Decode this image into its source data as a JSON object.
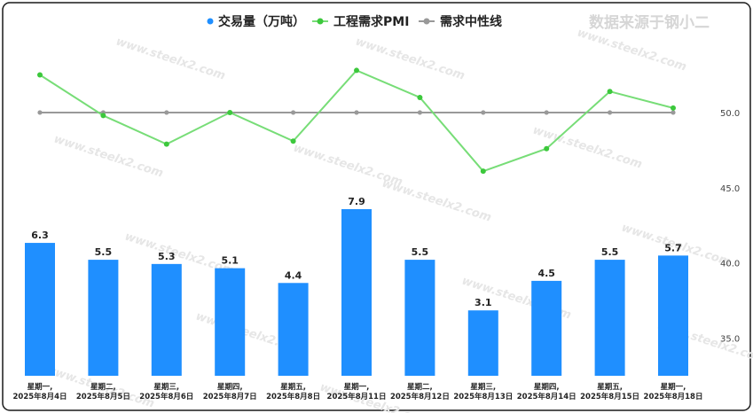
{
  "brand": "数据来源于钢小二",
  "watermark": "www.steelx2.com",
  "chart_data": {
    "type": "bar",
    "categories": [
      [
        "星期一,",
        "2025年8月4日"
      ],
      [
        "星期二,",
        "2025年8月5日"
      ],
      [
        "星期三,",
        "2025年8月6日"
      ],
      [
        "星期四,",
        "2025年8月7日"
      ],
      [
        "星期五,",
        "2025年8月8日"
      ],
      [
        "星期一,",
        "2025年8月11日"
      ],
      [
        "星期二,",
        "2025年8月12日"
      ],
      [
        "星期三,",
        "2025年8月13日"
      ],
      [
        "星期四,",
        "2025年8月14日"
      ],
      [
        "星期五,",
        "2025年8月15日"
      ],
      [
        "星期一,",
        "2025年8月18日"
      ]
    ],
    "series": [
      {
        "name": "交易量（万吨）",
        "type": "bar",
        "color": "#1f8fff",
        "values": [
          6.3,
          5.5,
          5.3,
          5.1,
          4.4,
          7.9,
          5.5,
          3.1,
          4.5,
          5.5,
          5.7
        ]
      },
      {
        "name": "工程需求PMI",
        "type": "line",
        "color": "#77dd77",
        "marker_color": "#3cc83c",
        "values": [
          52.5,
          49.8,
          47.9,
          50.0,
          48.1,
          52.8,
          51.0,
          46.1,
          47.6,
          51.4,
          50.3
        ]
      },
      {
        "name": "需求中性线",
        "type": "line",
        "color": "#999999",
        "values": [
          50,
          50,
          50,
          50,
          50,
          50,
          50,
          50,
          50,
          50,
          50
        ]
      }
    ],
    "y_right": {
      "ticks": [
        "50.0",
        "45.0",
        "40.0",
        "35.0"
      ],
      "ylim": [
        32.5,
        55.3
      ]
    },
    "legend_position": "top-center",
    "grid": false
  }
}
